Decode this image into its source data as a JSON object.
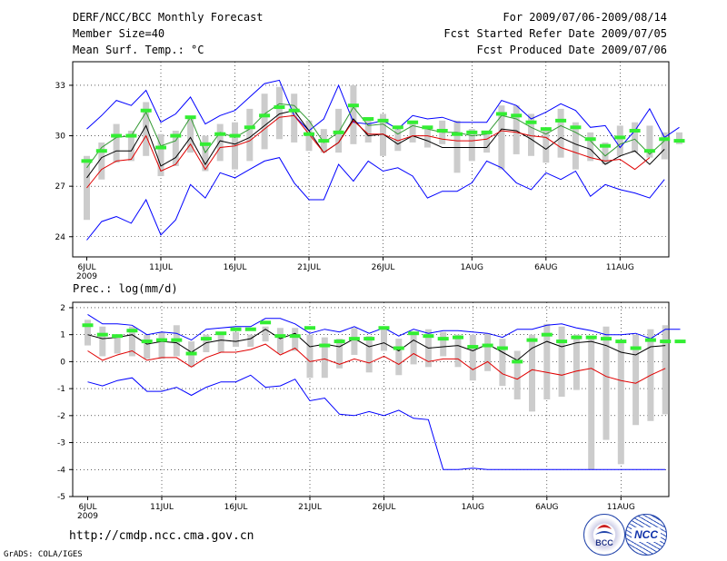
{
  "header": {
    "title": "DERF/NCC/BCC Monthly Forecast",
    "member_size": "Member Size=40",
    "variable": "Mean Surf. Temp.: °C",
    "period": "For 2009/07/06-2009/08/14",
    "started": "Fcst Started Refer Date 2009/07/05",
    "produced": "Fcst Produced Date 2009/07/06"
  },
  "footer": {
    "url": "http://cmdp.ncc.cma.gov.cn",
    "grads": "GrADS: COLA/IGES",
    "logo_bcc": "BCC",
    "logo_ncc": "NCC"
  },
  "colors": {
    "max": "#0000ff",
    "min": "#0000ff",
    "mean": "#000000",
    "mean2": "#e00000",
    "median": "#339933",
    "marker": "#33ee33",
    "box": "#cccccc"
  },
  "chart_data": [
    {
      "type": "line",
      "title": "Mean Surf. Temp.: °C",
      "xlabel": "",
      "ylabel": "",
      "x_tick_labels": [
        "6JUL",
        "11JUL",
        "16JUL",
        "21JUL",
        "26JUL",
        "1AUG",
        "6AUG",
        "11AUG"
      ],
      "x_tick_days": [
        0,
        5,
        10,
        15,
        20,
        26,
        31,
        36
      ],
      "year_label": "2009",
      "ylim": [
        22.8,
        34.4
      ],
      "y_ticks": [
        24,
        27,
        30,
        33
      ],
      "series": [
        {
          "name": "max",
          "color": "#0000ff",
          "values": [
            30.4,
            31.2,
            32.1,
            31.8,
            32.7,
            30.8,
            31.3,
            32.3,
            30.7,
            31.2,
            31.5,
            32.3,
            33.1,
            33.3,
            31.2,
            30.3,
            31.0,
            33.0,
            30.8,
            30.7,
            30.9,
            30.4,
            31.2,
            31.0,
            31.1,
            30.8,
            30.8,
            30.8,
            32.1,
            31.8,
            31.0,
            31.4,
            31.9,
            31.5,
            30.5,
            30.6,
            29.3,
            30.3,
            31.6,
            29.9,
            30.5
          ]
        },
        {
          "name": "min",
          "color": "#0000ff",
          "values": [
            23.8,
            24.9,
            25.2,
            24.8,
            26.2,
            24.1,
            25.0,
            27.1,
            26.3,
            27.8,
            27.5,
            28.0,
            28.5,
            28.7,
            27.2,
            26.2,
            26.2,
            28.3,
            27.3,
            28.5,
            27.9,
            28.1,
            27.6,
            26.3,
            26.7,
            26.7,
            27.2,
            28.5,
            28.1,
            27.2,
            26.8,
            27.8,
            27.4,
            27.9,
            26.4,
            27.1,
            26.8,
            26.6,
            26.3,
            27.4,
            null
          ]
        },
        {
          "name": "mean",
          "color": "#000000",
          "values": [
            27.5,
            28.7,
            29.1,
            29.1,
            30.6,
            28.2,
            28.7,
            29.9,
            28.3,
            29.7,
            29.5,
            29.9,
            30.6,
            31.3,
            31.5,
            30.3,
            29.0,
            29.6,
            31.0,
            30.0,
            30.1,
            29.5,
            30.0,
            29.7,
            29.3,
            29.3,
            29.3,
            29.3,
            30.4,
            30.3,
            29.8,
            29.2,
            29.9,
            29.5,
            29.2,
            28.3,
            28.8,
            29.1,
            28.3,
            29.2,
            null
          ]
        },
        {
          "name": "mean_red",
          "color": "#e00000",
          "values": [
            26.9,
            28.0,
            28.5,
            28.6,
            30.0,
            27.9,
            28.3,
            29.5,
            28.0,
            29.3,
            29.4,
            29.7,
            30.4,
            31.1,
            31.2,
            30.1,
            29.0,
            29.6,
            30.9,
            30.1,
            30.1,
            29.7,
            30.0,
            30.0,
            29.8,
            29.7,
            29.7,
            29.8,
            30.3,
            30.2,
            30.0,
            29.9,
            29.3,
            29.0,
            28.7,
            28.5,
            28.6,
            28.0,
            28.7,
            null,
            null
          ]
        },
        {
          "name": "median",
          "color": "#339933",
          "values": [
            28.1,
            29.3,
            29.9,
            30.0,
            31.4,
            29.4,
            29.7,
            31.1,
            29.0,
            30.2,
            29.9,
            30.4,
            31.3,
            31.9,
            31.8,
            30.9,
            29.6,
            30.2,
            31.7,
            30.6,
            30.7,
            30.1,
            30.6,
            30.4,
            30.2,
            30.2,
            30.0,
            30.1,
            31.2,
            31.0,
            30.5,
            30.1,
            30.6,
            30.2,
            29.7,
            28.8,
            29.5,
            29.8,
            28.9,
            29.7,
            null
          ]
        }
      ],
      "markers": [
        28.5,
        29.1,
        30.0,
        30.0,
        31.5,
        29.3,
        30.0,
        31.1,
        29.5,
        30.1,
        30.0,
        30.5,
        31.2,
        31.7,
        31.5,
        30.1,
        29.7,
        30.2,
        31.8,
        31.0,
        30.9,
        30.5,
        30.8,
        30.5,
        30.3,
        30.1,
        30.2,
        30.2,
        31.3,
        31.2,
        30.8,
        30.4,
        30.9,
        30.5,
        29.8,
        29.4,
        29.9,
        30.3,
        29.1,
        29.8,
        29.7
      ],
      "boxes": [
        [
          25.0,
          28.8
        ],
        [
          27.4,
          29.6
        ],
        [
          28.4,
          30.7
        ],
        [
          28.5,
          30.3
        ],
        [
          28.8,
          32.0
        ],
        [
          27.6,
          30.1
        ],
        [
          28.2,
          30.3
        ],
        [
          29.0,
          31.1
        ],
        [
          27.9,
          30.0
        ],
        [
          28.5,
          30.7
        ],
        [
          28.0,
          30.8
        ],
        [
          28.5,
          31.6
        ],
        [
          29.2,
          32.5
        ],
        [
          29.8,
          32.9
        ],
        [
          29.6,
          32.5
        ],
        [
          29.1,
          30.9
        ],
        [
          29.0,
          30.4
        ],
        [
          29.0,
          31.6
        ],
        [
          29.5,
          33.0
        ],
        [
          29.6,
          31.1
        ],
        [
          28.8,
          31.3
        ],
        [
          29.1,
          30.6
        ],
        [
          29.6,
          30.9
        ],
        [
          29.3,
          30.4
        ],
        [
          29.5,
          30.9
        ],
        [
          27.8,
          30.9
        ],
        [
          28.5,
          30.4
        ],
        [
          29.0,
          30.3
        ],
        [
          28.0,
          31.8
        ],
        [
          28.9,
          31.8
        ],
        [
          28.8,
          31.3
        ],
        [
          28.4,
          30.4
        ],
        [
          28.7,
          31.6
        ],
        [
          28.0,
          30.8
        ],
        [
          28.5,
          30.2
        ],
        [
          28.3,
          29.6
        ],
        [
          28.8,
          30.6
        ],
        [
          29.0,
          30.8
        ],
        [
          28.7,
          30.6
        ],
        [
          28.6,
          30.2
        ],
        [
          29.5,
          30.2
        ]
      ]
    },
    {
      "type": "line",
      "title": "Prec.: log(mm/d)",
      "xlabel": "",
      "ylabel": "",
      "x_tick_labels": [
        "6JUL",
        "11JUL",
        "16JUL",
        "21JUL",
        "26JUL",
        "1AUG",
        "6AUG",
        "11AUG"
      ],
      "x_tick_days": [
        0,
        5,
        10,
        15,
        20,
        26,
        31,
        36
      ],
      "year_label": "2009",
      "ylim": [
        -5,
        2.2
      ],
      "y_ticks": [
        -5,
        -4,
        -3,
        -2,
        -1,
        0,
        1,
        2
      ],
      "series": [
        {
          "name": "max",
          "color": "#0000ff",
          "values": [
            1.75,
            1.4,
            1.4,
            1.35,
            1.0,
            1.1,
            1.05,
            0.8,
            1.2,
            1.25,
            1.3,
            1.3,
            1.6,
            1.6,
            1.4,
            1.05,
            1.2,
            1.1,
            1.3,
            1.05,
            1.25,
            0.95,
            1.2,
            1.05,
            1.15,
            1.15,
            1.1,
            1.05,
            0.9,
            1.2,
            1.2,
            1.35,
            1.4,
            1.25,
            1.15,
            1.0,
            1.0,
            1.05,
            0.85,
            1.2,
            1.2
          ]
        },
        {
          "name": "min",
          "color": "#0000ff",
          "values": [
            -0.75,
            -0.9,
            -0.7,
            -0.6,
            -1.1,
            -1.1,
            -0.95,
            -1.25,
            -0.95,
            -0.75,
            -0.75,
            -0.5,
            -0.95,
            -0.9,
            -0.65,
            -1.45,
            -1.35,
            -1.95,
            -2.0,
            -1.85,
            -2.0,
            -1.8,
            -2.1,
            -2.15,
            -4.0,
            -4.0,
            -3.95,
            -4.0,
            -4.0,
            -4.0,
            -4.0,
            -4.0,
            -4.0,
            -4.0,
            -4.0,
            -4.0,
            -4.0,
            -4.0,
            -4.0,
            -4.0,
            null
          ]
        },
        {
          "name": "mean",
          "color": "#000000",
          "values": [
            1.0,
            0.85,
            0.9,
            1.0,
            0.65,
            0.75,
            0.7,
            0.35,
            0.7,
            0.8,
            0.75,
            0.85,
            1.2,
            0.85,
            1.05,
            0.55,
            0.65,
            0.55,
            0.85,
            0.55,
            0.7,
            0.4,
            0.8,
            0.5,
            0.55,
            0.6,
            0.4,
            0.65,
            0.35,
            0.05,
            0.5,
            0.75,
            0.55,
            0.7,
            0.75,
            0.6,
            0.35,
            0.25,
            0.55,
            0.6,
            null
          ]
        },
        {
          "name": "mean_red",
          "color": "#e00000",
          "values": [
            0.4,
            0.05,
            0.25,
            0.4,
            0.05,
            0.15,
            0.15,
            -0.2,
            0.15,
            0.35,
            0.35,
            0.45,
            0.65,
            0.25,
            0.5,
            0.0,
            0.1,
            -0.1,
            0.1,
            -0.05,
            0.2,
            -0.1,
            0.3,
            0.0,
            0.1,
            0.1,
            -0.3,
            0.0,
            -0.45,
            -0.65,
            -0.3,
            -0.4,
            -0.5,
            -0.35,
            -0.25,
            -0.55,
            -0.7,
            -0.8,
            -0.5,
            -0.25,
            null
          ]
        }
      ],
      "markers": [
        1.35,
        1.0,
        0.95,
        1.15,
        0.75,
        0.8,
        0.8,
        0.3,
        0.85,
        1.05,
        1.2,
        1.2,
        1.45,
        0.95,
        0.95,
        1.25,
        0.6,
        0.75,
        0.85,
        0.85,
        1.25,
        0.5,
        1.05,
        0.95,
        0.85,
        0.9,
        0.55,
        0.6,
        0.5,
        0.0,
        0.8,
        1.0,
        0.75,
        0.9,
        0.9,
        0.85,
        0.75,
        0.5,
        0.8,
        0.75,
        0.75
      ],
      "boxes": [
        [
          0.6,
          1.55
        ],
        [
          0.2,
          1.3
        ],
        [
          0.3,
          1.0
        ],
        [
          0.2,
          1.3
        ],
        [
          0.1,
          1.0
        ],
        [
          0.1,
          1.1
        ],
        [
          0.2,
          1.35
        ],
        [
          -0.2,
          0.75
        ],
        [
          0.35,
          1.0
        ],
        [
          0.35,
          1.1
        ],
        [
          0.55,
          1.1
        ],
        [
          0.55,
          1.0
        ],
        [
          0.75,
          1.3
        ],
        [
          0.3,
          1.25
        ],
        [
          0.4,
          1.25
        ],
        [
          -0.6,
          1.0
        ],
        [
          -0.6,
          0.9
        ],
        [
          -0.25,
          0.85
        ],
        [
          0.25,
          1.25
        ],
        [
          -0.4,
          0.95
        ],
        [
          0.4,
          1.3
        ],
        [
          -0.5,
          0.85
        ],
        [
          -0.1,
          1.1
        ],
        [
          -0.2,
          1.2
        ],
        [
          0.2,
          1.1
        ],
        [
          -0.2,
          1.0
        ],
        [
          -0.7,
          1.0
        ],
        [
          -0.35,
          1.05
        ],
        [
          -0.9,
          0.85
        ],
        [
          -1.4,
          0.4
        ],
        [
          -1.85,
          1.0
        ],
        [
          -1.4,
          1.4
        ],
        [
          -1.3,
          1.3
        ],
        [
          -1.05,
          1.0
        ],
        [
          -4.0,
          0.95
        ],
        [
          -2.9,
          1.3
        ],
        [
          -3.8,
          0.8
        ],
        [
          -2.35,
          1.0
        ],
        [
          -2.2,
          1.2
        ],
        [
          -1.95,
          1.35
        ],
        [
          null,
          null
        ]
      ]
    }
  ]
}
